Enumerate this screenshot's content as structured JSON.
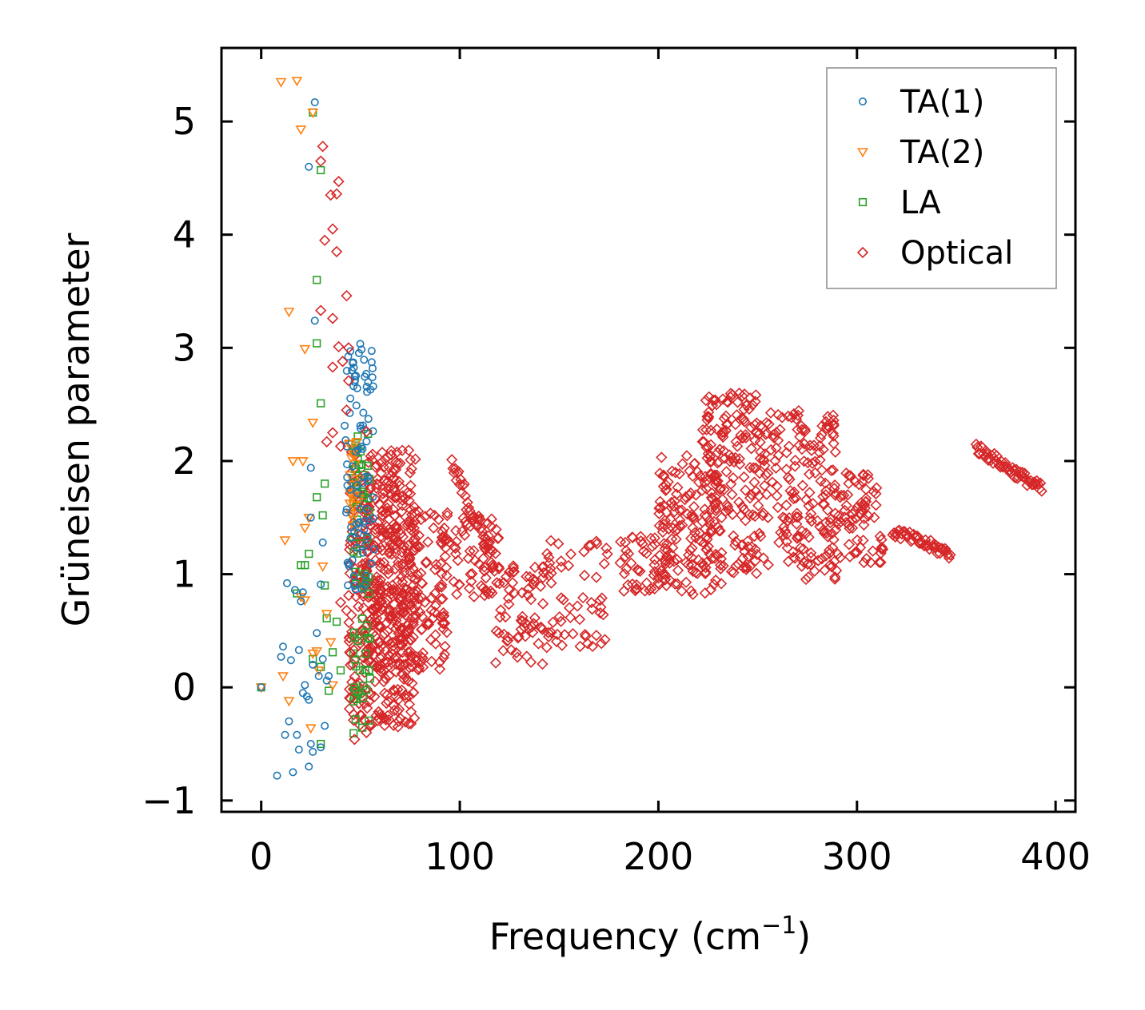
{
  "chart_data": {
    "type": "scatter",
    "title": "",
    "xlabel": "Frequency (cm",
    "xlabel_sup": "−1",
    "xlabel_end": ")",
    "ylabel": "Grüneisen parameter",
    "xlim": [
      -20,
      410
    ],
    "ylim": [
      -1.1,
      5.65
    ],
    "xticks": [
      0,
      100,
      200,
      300,
      400
    ],
    "xtick_labels": [
      "0",
      "100",
      "200",
      "300",
      "400"
    ],
    "yticks": [
      -1,
      0,
      1,
      2,
      3,
      4,
      5
    ],
    "ytick_labels": [
      "−1",
      "0",
      "1",
      "2",
      "3",
      "4",
      "5"
    ],
    "legend_position": "top-right",
    "series": [
      {
        "name": "TA(1)",
        "marker": "circle",
        "color": "#1f77b4",
        "points": [
          [
            0,
            0
          ],
          [
            8,
            -0.78
          ],
          [
            10,
            0.27
          ],
          [
            11,
            0.36
          ],
          [
            12,
            -0.42
          ],
          [
            13,
            0.92
          ],
          [
            14,
            -0.3
          ],
          [
            15,
            0.24
          ],
          [
            16,
            -0.75
          ],
          [
            17,
            0.86
          ],
          [
            18,
            -0.42
          ],
          [
            19,
            0.33
          ],
          [
            19,
            -0.55
          ],
          [
            20,
            0.76
          ],
          [
            21,
            0.84
          ],
          [
            21,
            -0.05
          ],
          [
            22,
            0.02
          ],
          [
            23,
            -0.08
          ],
          [
            24,
            -0.11
          ],
          [
            24,
            -0.7
          ],
          [
            25,
            1.94
          ],
          [
            25,
            1.5
          ],
          [
            25,
            -0.5
          ],
          [
            26,
            0.2
          ],
          [
            26,
            -0.57
          ],
          [
            27,
            3.24
          ],
          [
            27,
            5.17
          ],
          [
            28,
            0.48
          ],
          [
            29,
            0.1
          ],
          [
            30,
            -0.53
          ],
          [
            30,
            0.91
          ],
          [
            31,
            0.25
          ],
          [
            32,
            -0.34
          ],
          [
            31,
            1.28
          ],
          [
            33,
            0.06
          ],
          [
            34,
            0.1
          ],
          [
            24,
            4.6
          ]
        ]
      },
      {
        "name": "TA(2)",
        "marker": "triangle-down",
        "color": "#ff7f0e",
        "points": [
          [
            0,
            0
          ],
          [
            10,
            5.35
          ],
          [
            18,
            5.36
          ],
          [
            20,
            4.93
          ],
          [
            14,
            3.32
          ],
          [
            22,
            2.99
          ],
          [
            16,
            2.0
          ],
          [
            21,
            2.0
          ],
          [
            12,
            1.3
          ],
          [
            22,
            1.41
          ],
          [
            24,
            1.5
          ],
          [
            20,
            0.8
          ],
          [
            22,
            0.77
          ],
          [
            11,
            0.1
          ],
          [
            14,
            -0.12
          ],
          [
            26,
            0.3
          ],
          [
            28,
            0.32
          ],
          [
            25,
            -0.36
          ],
          [
            29,
            0.15
          ],
          [
            31,
            1.07
          ],
          [
            26,
            2.34
          ],
          [
            26,
            5.08
          ],
          [
            33,
            0.65
          ],
          [
            35,
            0.4
          ],
          [
            36,
            0.02
          ]
        ]
      },
      {
        "name": "LA",
        "marker": "square",
        "color": "#2ca02c",
        "points": [
          [
            0,
            0
          ],
          [
            26,
            5.08
          ],
          [
            30,
            4.57
          ],
          [
            28,
            3.6
          ],
          [
            28,
            3.04
          ],
          [
            30,
            2.51
          ],
          [
            32,
            1.8
          ],
          [
            28,
            1.68
          ],
          [
            31,
            1.52
          ],
          [
            24,
            1.18
          ],
          [
            20,
            1.08
          ],
          [
            22,
            1.08
          ],
          [
            18,
            0.83
          ],
          [
            32,
            0.9
          ],
          [
            33,
            0.61
          ],
          [
            30,
            0.18
          ],
          [
            34,
            -0.03
          ],
          [
            30,
            -0.5
          ],
          [
            26,
            0.25
          ],
          [
            36,
            0.31
          ],
          [
            38,
            0.58
          ],
          [
            40,
            0.15
          ]
        ]
      },
      {
        "name": "Optical",
        "marker": "diamond",
        "color": "#d62728",
        "points": [
          [
            31,
            4.78
          ],
          [
            30,
            4.65
          ],
          [
            35,
            4.35
          ],
          [
            39,
            4.47
          ],
          [
            38,
            4.36
          ],
          [
            36,
            4.05
          ],
          [
            32,
            3.95
          ],
          [
            38,
            3.85
          ],
          [
            43,
            3.46
          ],
          [
            30,
            3.33
          ],
          [
            36,
            3.26
          ],
          [
            39,
            3.01
          ],
          [
            44,
            3.0
          ],
          [
            41,
            2.88
          ],
          [
            36,
            2.83
          ],
          [
            44,
            2.71
          ],
          [
            36,
            2.25
          ],
          [
            33,
            2.17
          ],
          [
            40,
            2.13
          ],
          [
            43,
            2.45
          ],
          [
            53,
            2.26
          ],
          [
            70,
            1.98
          ],
          [
            64,
            1.62
          ],
          [
            40,
            0.75
          ],
          [
            43,
            0.68
          ],
          [
            45,
            -0.1
          ],
          [
            47,
            -0.46
          ],
          [
            53,
            -0.4
          ],
          [
            58,
            -0.25
          ],
          [
            45,
            0.3
          ]
        ]
      }
    ],
    "clusters": [
      {
        "xmin": 42,
        "xmax": 57,
        "ymin": 0.8,
        "ymax": 3.05,
        "n": 90,
        "series": "TA(1)"
      },
      {
        "xmin": 44,
        "xmax": 50,
        "ymin": 1.4,
        "ymax": 2.2,
        "n": 25,
        "series": "TA(2)"
      },
      {
        "xmin": 46,
        "xmax": 55,
        "ymin": -0.45,
        "ymax": 2.25,
        "n": 70,
        "series": "LA"
      },
      {
        "xmin": 44,
        "xmax": 78,
        "ymin": -0.35,
        "ymax": 2.1,
        "n": 420,
        "series": "Optical"
      },
      {
        "xmin": 52,
        "xmax": 95,
        "ymin": 0.15,
        "ymax": 1.6,
        "n": 220,
        "series": "Optical"
      },
      {
        "xmin": 95,
        "xmax": 120,
        "ymin": 0.8,
        "ymax": 1.5,
        "n": 60,
        "series": "Optical"
      },
      {
        "xmin": 118,
        "xmax": 142,
        "ymin": 0.2,
        "ymax": 1.15,
        "n": 60,
        "series": "Optical"
      },
      {
        "xmin": 140,
        "xmax": 175,
        "ymin": 0.35,
        "ymax": 1.3,
        "n": 60,
        "series": "Optical"
      },
      {
        "xmin": 180,
        "xmax": 205,
        "ymin": 0.85,
        "ymax": 1.35,
        "n": 50,
        "series": "Optical"
      },
      {
        "xmin": 200,
        "xmax": 232,
        "ymin": 0.8,
        "ymax": 2.05,
        "n": 140,
        "series": "Optical"
      },
      {
        "xmin": 222,
        "xmax": 250,
        "ymin": 1.0,
        "ymax": 2.6,
        "n": 170,
        "series": "Optical"
      },
      {
        "xmin": 250,
        "xmax": 290,
        "ymin": 0.95,
        "ymax": 2.45,
        "n": 190,
        "series": "Optical"
      },
      {
        "xmin": 290,
        "xmax": 313,
        "ymin": 1.1,
        "ymax": 1.9,
        "n": 70,
        "series": "Optical"
      }
    ],
    "bands": [
      {
        "x0": 318,
        "y0": 1.38,
        "x1": 347,
        "y1": 1.18,
        "width": 0.1,
        "n": 45,
        "series": "Optical"
      },
      {
        "x0": 360,
        "y0": 2.12,
        "x1": 393,
        "y1": 1.75,
        "width": 0.1,
        "n": 55,
        "series": "Optical"
      },
      {
        "x0": 96,
        "y0": 1.95,
        "x1": 118,
        "y1": 1.1,
        "width": 0.2,
        "n": 40,
        "series": "Optical"
      }
    ]
  }
}
